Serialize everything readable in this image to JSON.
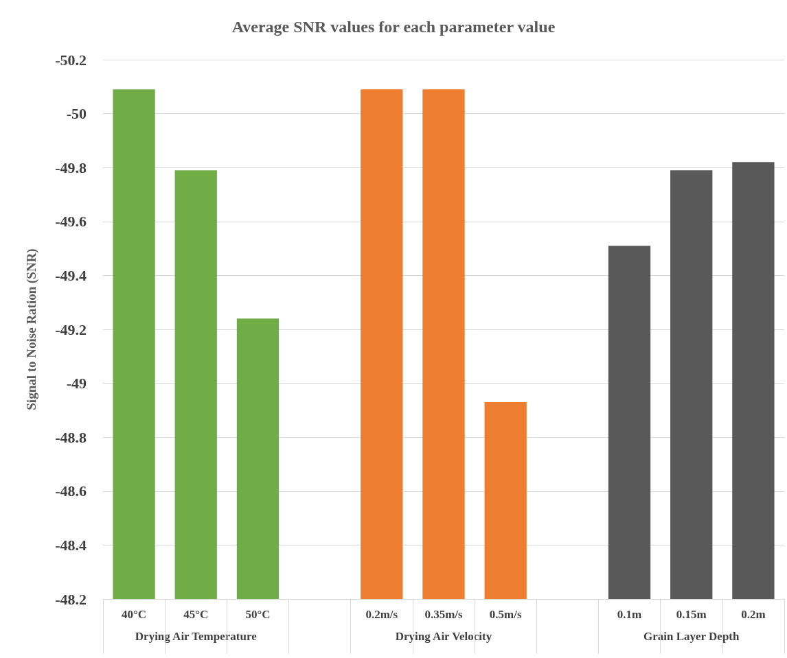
{
  "chart_data": {
    "type": "bar",
    "title": "Average SNR values for each parameter value",
    "ylabel": "Signal to Noise Ration (SNR)",
    "categories": [
      "40°C",
      "45°C",
      "50°C",
      null,
      "0.2m/s",
      "0.35m/s",
      "0.5m/s",
      null,
      "0.1m",
      "0.15m",
      "0.2m"
    ],
    "values": [
      -50.09,
      -49.79,
      -49.24,
      null,
      -50.09,
      -50.09,
      -48.93,
      null,
      -49.51,
      -49.79,
      -49.82
    ],
    "colors": [
      "#70ad47",
      "#70ad47",
      "#70ad47",
      null,
      "#ed7d31",
      "#ed7d31",
      "#ed7d31",
      null,
      "#595959",
      "#595959",
      "#595959"
    ],
    "annotations": [
      "Drying Air Temperature",
      "Drying Air Velocity",
      "Grain Layer Depth"
    ],
    "ylim": [
      -48.2,
      -50.2
    ],
    "yticks": [
      -50.2,
      -50,
      -49.8,
      -49.6,
      -49.4,
      -49.2,
      -49,
      -48.8,
      -48.6,
      -48.4,
      -48.2
    ],
    "grid": "y"
  }
}
